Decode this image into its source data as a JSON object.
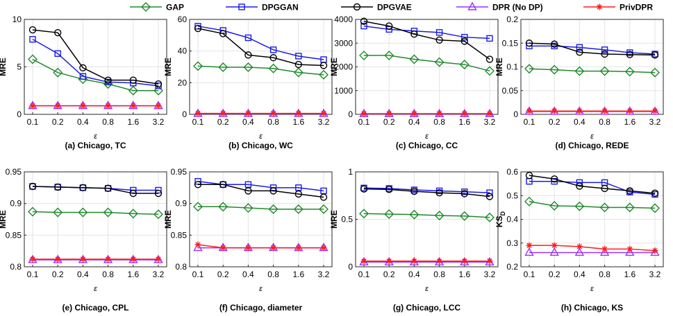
{
  "chart_data": {
    "type": "line",
    "legend": {
      "placement": "top",
      "entries": [
        "GAP",
        "DPGGAN",
        "DPGVAE",
        "DPR (No DP)",
        "PrivDPR"
      ]
    },
    "series_style": [
      {
        "name": "GAP",
        "color": "#1f8a2b",
        "marker": "diamond"
      },
      {
        "name": "DPGGAN",
        "color": "#1a1ae6",
        "marker": "square"
      },
      {
        "name": "DPGVAE",
        "color": "#000000",
        "marker": "circle"
      },
      {
        "name": "DPR (No DP)",
        "color": "#9b30ff",
        "marker": "triangle"
      },
      {
        "name": "PrivDPR",
        "color": "#ff1a1a",
        "marker": "star"
      }
    ],
    "categories": [
      "0.1",
      "0.2",
      "0.4",
      "0.8",
      "1.6",
      "3.2"
    ],
    "xlabel": "ε",
    "panels": [
      {
        "caption": "(a) Chicago, TC",
        "ylabel": "MRE",
        "sub": "",
        "ylim": [
          0,
          10
        ],
        "yticks": [
          0,
          5,
          10
        ],
        "ytick_labels": [
          "0",
          "5",
          "10"
        ],
        "series": [
          {
            "name": "GAP",
            "values": [
              5.8,
              4.4,
              3.7,
              3.2,
              2.5,
              2.5
            ]
          },
          {
            "name": "DPGGAN",
            "values": [
              7.9,
              6.4,
              4.0,
              3.4,
              3.3,
              3.0
            ]
          },
          {
            "name": "DPGVAE",
            "values": [
              8.9,
              8.6,
              4.9,
              3.6,
              3.6,
              3.2
            ]
          },
          {
            "name": "DPR (No DP)",
            "values": [
              0.9,
              0.9,
              0.9,
              0.9,
              0.9,
              0.9
            ]
          },
          {
            "name": "PrivDPR",
            "values": [
              0.9,
              0.9,
              0.9,
              0.9,
              0.9,
              0.9
            ]
          }
        ]
      },
      {
        "caption": "(b) Chicago, WC",
        "ylabel": "MRE",
        "sub": "",
        "ylim": [
          0,
          60
        ],
        "yticks": [
          0,
          20,
          40,
          60
        ],
        "ytick_labels": [
          "0",
          "20",
          "40",
          "60"
        ],
        "series": [
          {
            "name": "GAP",
            "values": [
              30.5,
              29.8,
              29.8,
              29.0,
              26.5,
              25.0
            ]
          },
          {
            "name": "DPGGAN",
            "values": [
              55.7,
              53.0,
              48.4,
              40.8,
              36.8,
              34.6
            ]
          },
          {
            "name": "DPGVAE",
            "values": [
              54.3,
              51.0,
              37.5,
              35.8,
              31.5,
              30.9
            ]
          },
          {
            "name": "DPR (No DP)",
            "values": [
              0.4,
              0.4,
              0.4,
              0.4,
              0.4,
              0.4
            ]
          },
          {
            "name": "PrivDPR",
            "values": [
              0.6,
              0.6,
              0.6,
              0.6,
              0.6,
              0.6
            ]
          }
        ]
      },
      {
        "caption": "(c) Chicago, CC",
        "ylabel": "MRE",
        "sub": "",
        "ylim": [
          0,
          4000
        ],
        "yticks": [
          0,
          1000,
          2000,
          3000,
          4000
        ],
        "ytick_labels": [
          "0",
          "1000",
          "2000",
          "3000",
          "4000"
        ],
        "series": [
          {
            "name": "GAP",
            "values": [
              2480,
              2480,
              2320,
              2200,
              2100,
              1830
            ]
          },
          {
            "name": "DPGGAN",
            "values": [
              3720,
              3580,
              3510,
              3450,
              3250,
              3200
            ]
          },
          {
            "name": "DPGVAE",
            "values": [
              3920,
              3720,
              3380,
              3130,
              3080,
              2320
            ]
          },
          {
            "name": "DPR (No DP)",
            "values": [
              20,
              20,
              20,
              20,
              20,
              20
            ]
          },
          {
            "name": "PrivDPR",
            "values": [
              30,
              30,
              30,
              30,
              30,
              30
            ]
          }
        ]
      },
      {
        "caption": "(d) Chicago,  REDE",
        "ylabel": "MRE",
        "sub": "",
        "ylim": [
          0,
          0.2
        ],
        "yticks": [
          0,
          0.05,
          0.1,
          0.15,
          0.2
        ],
        "ytick_labels": [
          "0",
          "0.05",
          "0.1",
          "0.15",
          "0.2"
        ],
        "series": [
          {
            "name": "GAP",
            "values": [
              0.096,
              0.094,
              0.091,
              0.091,
              0.09,
              0.088
            ]
          },
          {
            "name": "DPGGAN",
            "values": [
              0.144,
              0.144,
              0.141,
              0.136,
              0.13,
              0.127
            ]
          },
          {
            "name": "DPGVAE",
            "values": [
              0.15,
              0.148,
              0.131,
              0.127,
              0.126,
              0.125
            ]
          },
          {
            "name": "DPR (No DP)",
            "values": [
              0.006,
              0.006,
              0.006,
              0.006,
              0.006,
              0.006
            ]
          },
          {
            "name": "PrivDPR",
            "values": [
              0.007,
              0.007,
              0.007,
              0.007,
              0.007,
              0.007
            ]
          }
        ]
      },
      {
        "caption": "(e) Chicago, CPL",
        "ylabel": "MRE",
        "sub": "",
        "ylim": [
          0.8,
          0.95
        ],
        "yticks": [
          0.8,
          0.85,
          0.9,
          0.95
        ],
        "ytick_labels": [
          "0.8",
          "0.85",
          "0.9",
          "0.95"
        ],
        "series": [
          {
            "name": "GAP",
            "values": [
              0.887,
              0.886,
              0.886,
              0.886,
              0.884,
              0.883
            ]
          },
          {
            "name": "DPGGAN",
            "values": [
              0.927,
              0.926,
              0.925,
              0.924,
              0.921,
              0.921
            ]
          },
          {
            "name": "DPGVAE",
            "values": [
              0.927,
              0.926,
              0.925,
              0.924,
              0.916,
              0.916
            ]
          },
          {
            "name": "DPR (No DP)",
            "values": [
              0.811,
              0.811,
              0.811,
              0.811,
              0.811,
              0.811
            ]
          },
          {
            "name": "PrivDPR",
            "values": [
              0.812,
              0.812,
              0.812,
              0.812,
              0.812,
              0.812
            ]
          }
        ]
      },
      {
        "caption": "(f) Chicago, diameter",
        "ylabel": "MRE",
        "sub": "",
        "ylim": [
          0.8,
          0.95
        ],
        "yticks": [
          0.8,
          0.85,
          0.9,
          0.95
        ],
        "ytick_labels": [
          "0.8",
          "0.85",
          "0.9",
          "0.95"
        ],
        "series": [
          {
            "name": "GAP",
            "values": [
              0.895,
              0.895,
              0.893,
              0.891,
              0.891,
              0.891
            ]
          },
          {
            "name": "DPGGAN",
            "values": [
              0.935,
              0.93,
              0.93,
              0.925,
              0.925,
              0.92
            ]
          },
          {
            "name": "DPGVAE",
            "values": [
              0.93,
              0.93,
              0.92,
              0.92,
              0.915,
              0.91
            ]
          },
          {
            "name": "DPR (No DP)",
            "values": [
              0.83,
              0.83,
              0.83,
              0.83,
              0.83,
              0.83
            ]
          },
          {
            "name": "PrivDPR",
            "values": [
              0.835,
              0.83,
              0.83,
              0.83,
              0.83,
              0.83
            ]
          }
        ]
      },
      {
        "caption": "(g) Chicago, LCC",
        "ylabel": "MRE",
        "sub": "",
        "ylim": [
          0,
          1
        ],
        "yticks": [
          0,
          0.5,
          1
        ],
        "ytick_labels": [
          "0",
          "0.5",
          "1"
        ],
        "series": [
          {
            "name": "GAP",
            "values": [
              0.56,
              0.555,
              0.55,
              0.54,
              0.535,
              0.52
            ]
          },
          {
            "name": "DPGGAN",
            "values": [
              0.83,
              0.825,
              0.81,
              0.8,
              0.79,
              0.78
            ]
          },
          {
            "name": "DPGVAE",
            "values": [
              0.82,
              0.815,
              0.795,
              0.78,
              0.77,
              0.74
            ]
          },
          {
            "name": "DPR (No DP)",
            "values": [
              0.05,
              0.05,
              0.05,
              0.05,
              0.05,
              0.05
            ]
          },
          {
            "name": "PrivDPR",
            "values": [
              0.06,
              0.06,
              0.06,
              0.06,
              0.06,
              0.06
            ]
          }
        ]
      },
      {
        "caption": "(h) Chicago, KS",
        "ylabel": "KS",
        "sub": "D",
        "ylim": [
          0.2,
          0.6
        ],
        "yticks": [
          0.2,
          0.3,
          0.4,
          0.5,
          0.6
        ],
        "ytick_labels": [
          "0.2",
          "0.3",
          "0.4",
          "0.5",
          "0.6"
        ],
        "series": [
          {
            "name": "GAP",
            "values": [
              0.475,
              0.457,
              0.455,
              0.45,
              0.45,
              0.447
            ]
          },
          {
            "name": "DPGGAN",
            "values": [
              0.56,
              0.56,
              0.555,
              0.555,
              0.515,
              0.505
            ]
          },
          {
            "name": "DPGVAE",
            "values": [
              0.585,
              0.57,
              0.54,
              0.53,
              0.52,
              0.51
            ]
          },
          {
            "name": "DPR (No DP)",
            "values": [
              0.26,
              0.26,
              0.26,
              0.26,
              0.26,
              0.26
            ]
          },
          {
            "name": "PrivDPR",
            "values": [
              0.29,
              0.29,
              0.285,
              0.275,
              0.275,
              0.268
            ]
          }
        ]
      }
    ]
  }
}
